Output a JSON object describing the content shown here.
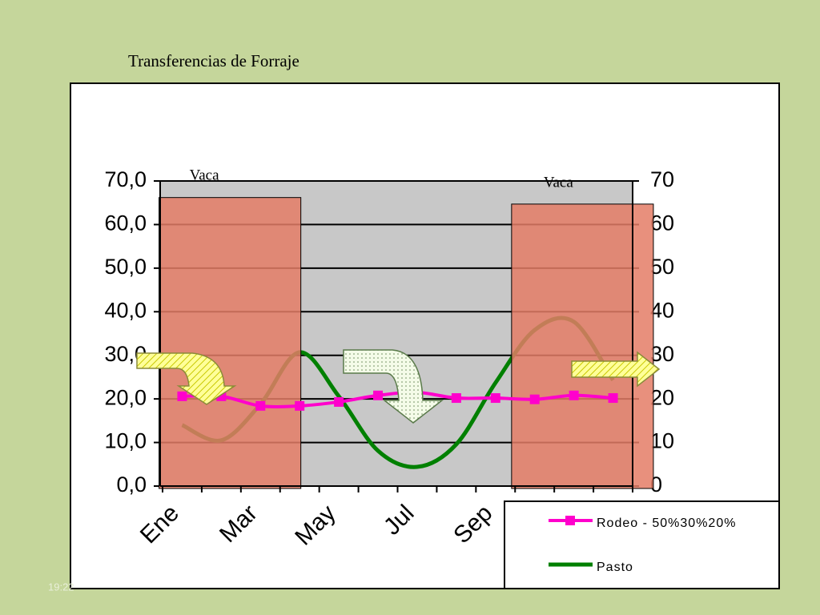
{
  "slide_title": "Transferencias de Forraje",
  "footer": "19:22",
  "chart_data": {
    "type": "line",
    "categories": [
      "Ene",
      null,
      "Mar",
      null,
      "May",
      null,
      "Jul",
      null,
      "Sep",
      null,
      null,
      null
    ],
    "series": [
      {
        "name": "Rodeo - 50%30%20%",
        "color": "#ff00cc",
        "values": [
          20.6,
          20.6,
          18.4,
          18.4,
          19.3,
          20.8,
          21.5,
          20.2,
          20.2,
          19.9,
          20.8,
          20.2
        ]
      },
      {
        "name": "Pasto",
        "color": "#008000",
        "values": [
          14.0,
          10.5,
          18.8,
          30.7,
          20.6,
          8.1,
          4.4,
          9.6,
          23.7,
          35.8,
          37.7,
          24.3
        ]
      }
    ],
    "bars": {
      "color": "#e47c66",
      "axis": "y2",
      "values": [
        null,
        66.2,
        null,
        null,
        null,
        null,
        null,
        null,
        null,
        null,
        64.7,
        null
      ]
    },
    "annotations": [
      "Vaca",
      "Vaca"
    ],
    "ylim": [
      0,
      70
    ],
    "yticks": [
      {
        "value": 0,
        "label": "0,0"
      },
      {
        "value": 10,
        "label": "10,0"
      },
      {
        "value": 20,
        "label": "20,0"
      },
      {
        "value": 30,
        "label": "30,0"
      },
      {
        "value": 40,
        "label": "40,0"
      },
      {
        "value": 50,
        "label": "50,0"
      },
      {
        "value": 60,
        "label": "60,0"
      },
      {
        "value": 70,
        "label": "70,0"
      }
    ],
    "y2lim": [
      0,
      70
    ],
    "y2ticks": [
      0,
      10,
      20,
      30,
      40,
      50,
      60,
      70
    ],
    "grid": true
  }
}
